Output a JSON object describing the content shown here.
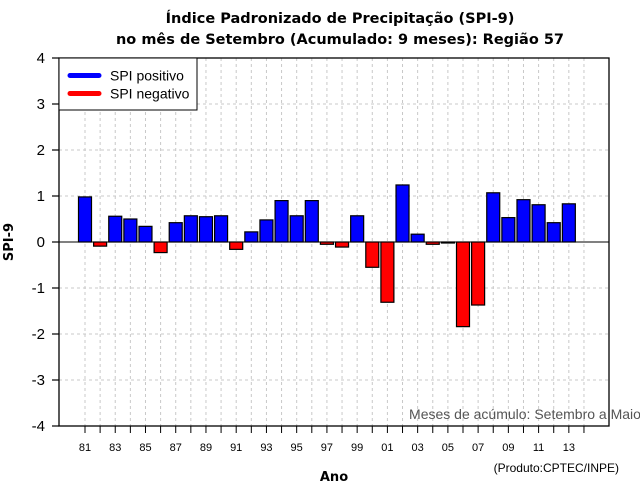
{
  "chart_data": {
    "type": "bar",
    "title": "Índice Padronizado de Precipitação (SPI-9)",
    "subtitle": "no mês de Setembro (Acumulado: 9 meses): Região 57",
    "xlabel": "Ano",
    "ylabel": "SPI-9",
    "ylim": [
      -4,
      4
    ],
    "yticks": [
      "4",
      "3",
      "2",
      "1",
      "0",
      "-1",
      "-2",
      "-3",
      "-4"
    ],
    "ytick_values": [
      4,
      3,
      2,
      1,
      0,
      -1,
      -2,
      -3,
      -4
    ],
    "xlim_years": [
      1980,
      2015
    ],
    "xtick_years": [
      1981,
      1982,
      1983,
      1984,
      1985,
      1986,
      1987,
      1988,
      1989,
      1990,
      1991,
      1992,
      1993,
      1994,
      1995,
      1996,
      1997,
      1998,
      1999,
      2000,
      2001,
      2002,
      2003,
      2004,
      2005,
      2006,
      2007,
      2008,
      2009,
      2010,
      2011,
      2012,
      2013,
      2014
    ],
    "xtick_labels": [
      "81",
      "83",
      "85",
      "87",
      "89",
      "91",
      "93",
      "95",
      "97",
      "99",
      "01",
      "03",
      "05",
      "07",
      "09",
      "11",
      "13"
    ],
    "xtick_label_years": [
      1981,
      1983,
      1985,
      1987,
      1989,
      1991,
      1993,
      1995,
      1997,
      1999,
      2001,
      2003,
      2005,
      2007,
      2009,
      2011,
      2013
    ],
    "grid": true,
    "categories": [
      "1981",
      "1982",
      "1983",
      "1984",
      "1985",
      "1986",
      "1987",
      "1988",
      "1989",
      "1990",
      "1991",
      "1992",
      "1993",
      "1994",
      "1995",
      "1996",
      "1997",
      "1998",
      "1999",
      "2000",
      "2001",
      "2002",
      "2003",
      "2004",
      "2005",
      "2006",
      "2007",
      "2008",
      "2009",
      "2010",
      "2011",
      "2012",
      "2013"
    ],
    "values": [
      0.98,
      -0.09,
      0.56,
      0.5,
      0.34,
      -0.23,
      0.42,
      0.57,
      0.55,
      0.57,
      -0.16,
      0.22,
      0.48,
      0.9,
      0.57,
      0.9,
      -0.05,
      -0.11,
      0.57,
      -0.55,
      -1.31,
      1.24,
      0.17,
      -0.05,
      -0.02,
      -1.84,
      -1.37,
      1.07,
      0.53,
      0.92,
      0.81,
      0.42,
      0.83
    ],
    "legend": {
      "placement": "top-left",
      "entries": [
        {
          "label": "SPI positivo",
          "color": "#0000ff"
        },
        {
          "label": "SPI negativo",
          "color": "#ff0000"
        }
      ]
    },
    "colors": {
      "positive": "#0000ff",
      "negative": "#ff0000",
      "grid": "#c8c8c8"
    },
    "annotation": "Meses de acúmulo: Setembro a Maio",
    "credit": "(Produto:CPTEC/INPE)"
  }
}
